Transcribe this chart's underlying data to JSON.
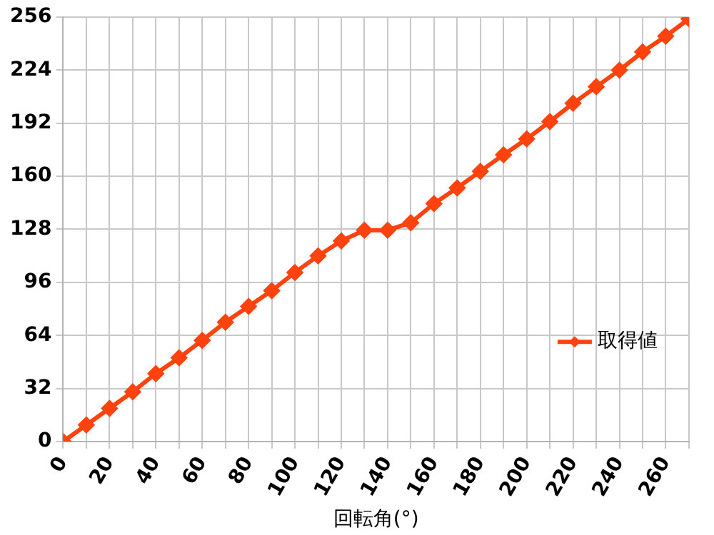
{
  "chart_data": {
    "type": "line",
    "xlabel": "回転角(°)",
    "x": [
      0,
      10,
      20,
      30,
      40,
      50,
      60,
      70,
      80,
      90,
      100,
      110,
      120,
      130,
      140,
      150,
      160,
      170,
      180,
      190,
      200,
      210,
      220,
      230,
      240,
      250,
      260,
      270
    ],
    "series": [
      {
        "name": "取得値",
        "color": "#ff420e",
        "values": [
          0,
          10,
          20,
          30,
          41,
          50.5,
          61,
          72,
          81.5,
          91,
          102,
          112,
          121,
          127.5,
          127.5,
          132,
          143.5,
          153,
          163,
          173,
          182.5,
          193,
          204,
          214,
          224,
          235,
          244.5,
          255
        ]
      }
    ],
    "xlim": [
      0,
      270
    ],
    "xticks": [
      0,
      {
        "value": 10,
        "label": null
      },
      20,
      {
        "value": 30,
        "label": null
      },
      40,
      {
        "value": 50,
        "label": null
      },
      60,
      {
        "value": 70,
        "label": null
      },
      80,
      {
        "value": 90,
        "label": null
      },
      100,
      {
        "value": 110,
        "label": null
      },
      120,
      {
        "value": 130,
        "label": null
      },
      140,
      {
        "value": 150,
        "label": null
      },
      160,
      {
        "value": 170,
        "label": null
      },
      180,
      {
        "value": 190,
        "label": null
      },
      200,
      {
        "value": 210,
        "label": null
      },
      220,
      {
        "value": 230,
        "label": null
      },
      240,
      {
        "value": 250,
        "label": null
      },
      260,
      {
        "value": 270,
        "label": null
      }
    ],
    "ylim": [
      0,
      256
    ],
    "yticks": [
      0,
      32,
      64,
      96,
      128,
      160,
      192,
      224,
      256
    ],
    "grid": true,
    "legend": "right",
    "marker": "diamond",
    "line_style": "solid"
  }
}
